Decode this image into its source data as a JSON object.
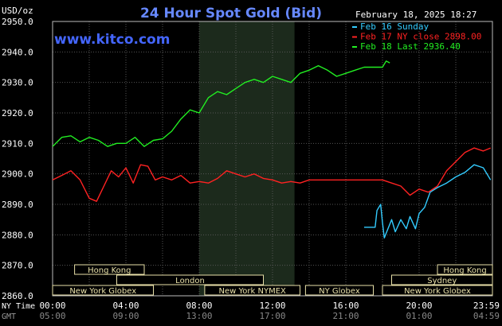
{
  "header": {
    "units": "USD/oz",
    "title": "24 Hour Spot Gold (Bid)",
    "datetime": "February 18, 2025 18:27",
    "website": "www.kitco.com"
  },
  "legend": [
    {
      "label": "Feb 16 Sunday",
      "color": "#33ccff"
    },
    {
      "label": "Feb 17 NY close 2898.00",
      "color": "#ff2222"
    },
    {
      "label": "Feb 18 Last 2936.40",
      "color": "#22ee22"
    }
  ],
  "markets_row1": [
    {
      "label": "Hong Kong",
      "start": 1.2,
      "end": 5.0
    },
    {
      "label": "Hong Kong",
      "start": 21.0,
      "end": 24.0
    }
  ],
  "markets_row2": [
    {
      "label": "London",
      "start": 3.5,
      "end": 11.5
    },
    {
      "label": "Sydney",
      "start": 18.5,
      "end": 24.0
    }
  ],
  "markets_row3": [
    {
      "label": "New York Globex",
      "start": 0.0,
      "end": 5.5
    },
    {
      "label": "New York NYMEX",
      "start": 8.3,
      "end": 13.5
    },
    {
      "label": "NY Globex",
      "start": 13.8,
      "end": 17.5
    },
    {
      "label": "New York Globex",
      "start": 18.0,
      "end": 24.0
    }
  ],
  "time_rows": {
    "ny_label": "NY Time",
    "gmt_label": "GMT",
    "ny": [
      "00:00",
      "04:00",
      "08:00",
      "12:00",
      "16:00",
      "20:00",
      "23:59"
    ],
    "gmt": [
      "05:00",
      "09:00",
      "13:00",
      "17:00",
      "21:00",
      "01:00",
      "04:59"
    ]
  },
  "chart_data": {
    "type": "line",
    "ylabel": "USD/oz",
    "ylim": [
      2860,
      2950
    ],
    "xlim": [
      0,
      24
    ],
    "yticks": [
      "2950.0",
      "2940.0",
      "2930.0",
      "2920.0",
      "2910.0",
      "2900.0",
      "2890.0",
      "2880.0",
      "2870.0",
      "2860.0"
    ],
    "grid": true,
    "shaded_hours": [
      8.0,
      13.2
    ],
    "legend_position": "top-right",
    "series": [
      {
        "name": "Feb 16 Sunday",
        "color": "#33ccff",
        "x": [
          17.0,
          17.6,
          17.7,
          17.9,
          18.0,
          18.1,
          18.2,
          18.5,
          18.7,
          19.0,
          19.3,
          19.5,
          19.8,
          20.0,
          20.3,
          20.6,
          21.0,
          21.5,
          22.0,
          22.5,
          23.0,
          23.5,
          23.9
        ],
        "values": [
          2882.5,
          2882.5,
          2888.0,
          2890.0,
          2884.0,
          2879.0,
          2880.5,
          2885.0,
          2881.0,
          2885.0,
          2882.0,
          2886.0,
          2882.0,
          2887.0,
          2889.0,
          2894.0,
          2895.5,
          2897.0,
          2899.0,
          2900.5,
          2903.0,
          2902.0,
          2898.0
        ]
      },
      {
        "name": "Feb 17 NY close 2898.00",
        "color": "#ff2222",
        "x": [
          0.0,
          0.5,
          1.0,
          1.5,
          2.0,
          2.4,
          2.8,
          3.2,
          3.6,
          4.0,
          4.4,
          4.8,
          5.2,
          5.6,
          6.0,
          6.5,
          7.0,
          7.5,
          8.0,
          8.5,
          9.0,
          9.5,
          10.0,
          10.5,
          11.0,
          11.5,
          12.0,
          12.5,
          13.0,
          13.5,
          14.0,
          15.0,
          16.0,
          17.0,
          18.0,
          18.5,
          19.0,
          19.5,
          20.0,
          20.5,
          21.0,
          21.5,
          22.0,
          22.5,
          23.0,
          23.5,
          23.9
        ],
        "values": [
          2898.0,
          2899.5,
          2901.0,
          2898.0,
          2892.0,
          2891.0,
          2896.0,
          2901.0,
          2899.0,
          2902.0,
          2897.0,
          2903.0,
          2902.5,
          2898.0,
          2899.0,
          2898.0,
          2899.5,
          2897.0,
          2897.5,
          2897.0,
          2898.5,
          2901.0,
          2900.0,
          2899.0,
          2900.0,
          2898.5,
          2898.0,
          2897.0,
          2897.5,
          2897.0,
          2898.0,
          2898.0,
          2898.0,
          2898.0,
          2898.0,
          2897.0,
          2896.0,
          2893.0,
          2895.0,
          2894.0,
          2896.0,
          2901.0,
          2904.0,
          2907.0,
          2908.5,
          2907.5,
          2908.5
        ]
      },
      {
        "name": "Feb 18 Last 2936.40",
        "color": "#22ee22",
        "x": [
          0.0,
          0.5,
          1.0,
          1.5,
          2.0,
          2.5,
          3.0,
          3.5,
          4.0,
          4.5,
          5.0,
          5.5,
          6.0,
          6.5,
          7.0,
          7.5,
          8.0,
          8.5,
          9.0,
          9.5,
          10.0,
          10.5,
          11.0,
          11.5,
          12.0,
          12.5,
          13.0,
          13.5,
          14.0,
          14.5,
          15.0,
          15.5,
          16.0,
          16.5,
          17.0,
          17.5,
          18.0,
          18.2,
          18.4
        ],
        "values": [
          2909.0,
          2912.0,
          2912.5,
          2910.5,
          2912.0,
          2911.0,
          2909.0,
          2910.0,
          2910.0,
          2912.0,
          2909.0,
          2911.0,
          2911.5,
          2914.0,
          2918.0,
          2921.0,
          2920.0,
          2925.0,
          2927.0,
          2926.0,
          2928.0,
          2930.0,
          2931.0,
          2930.0,
          2932.0,
          2931.0,
          2930.0,
          2933.0,
          2934.0,
          2935.5,
          2934.0,
          2932.0,
          2933.0,
          2934.0,
          2935.0,
          2935.0,
          2935.0,
          2937.0,
          2936.4
        ]
      }
    ]
  }
}
